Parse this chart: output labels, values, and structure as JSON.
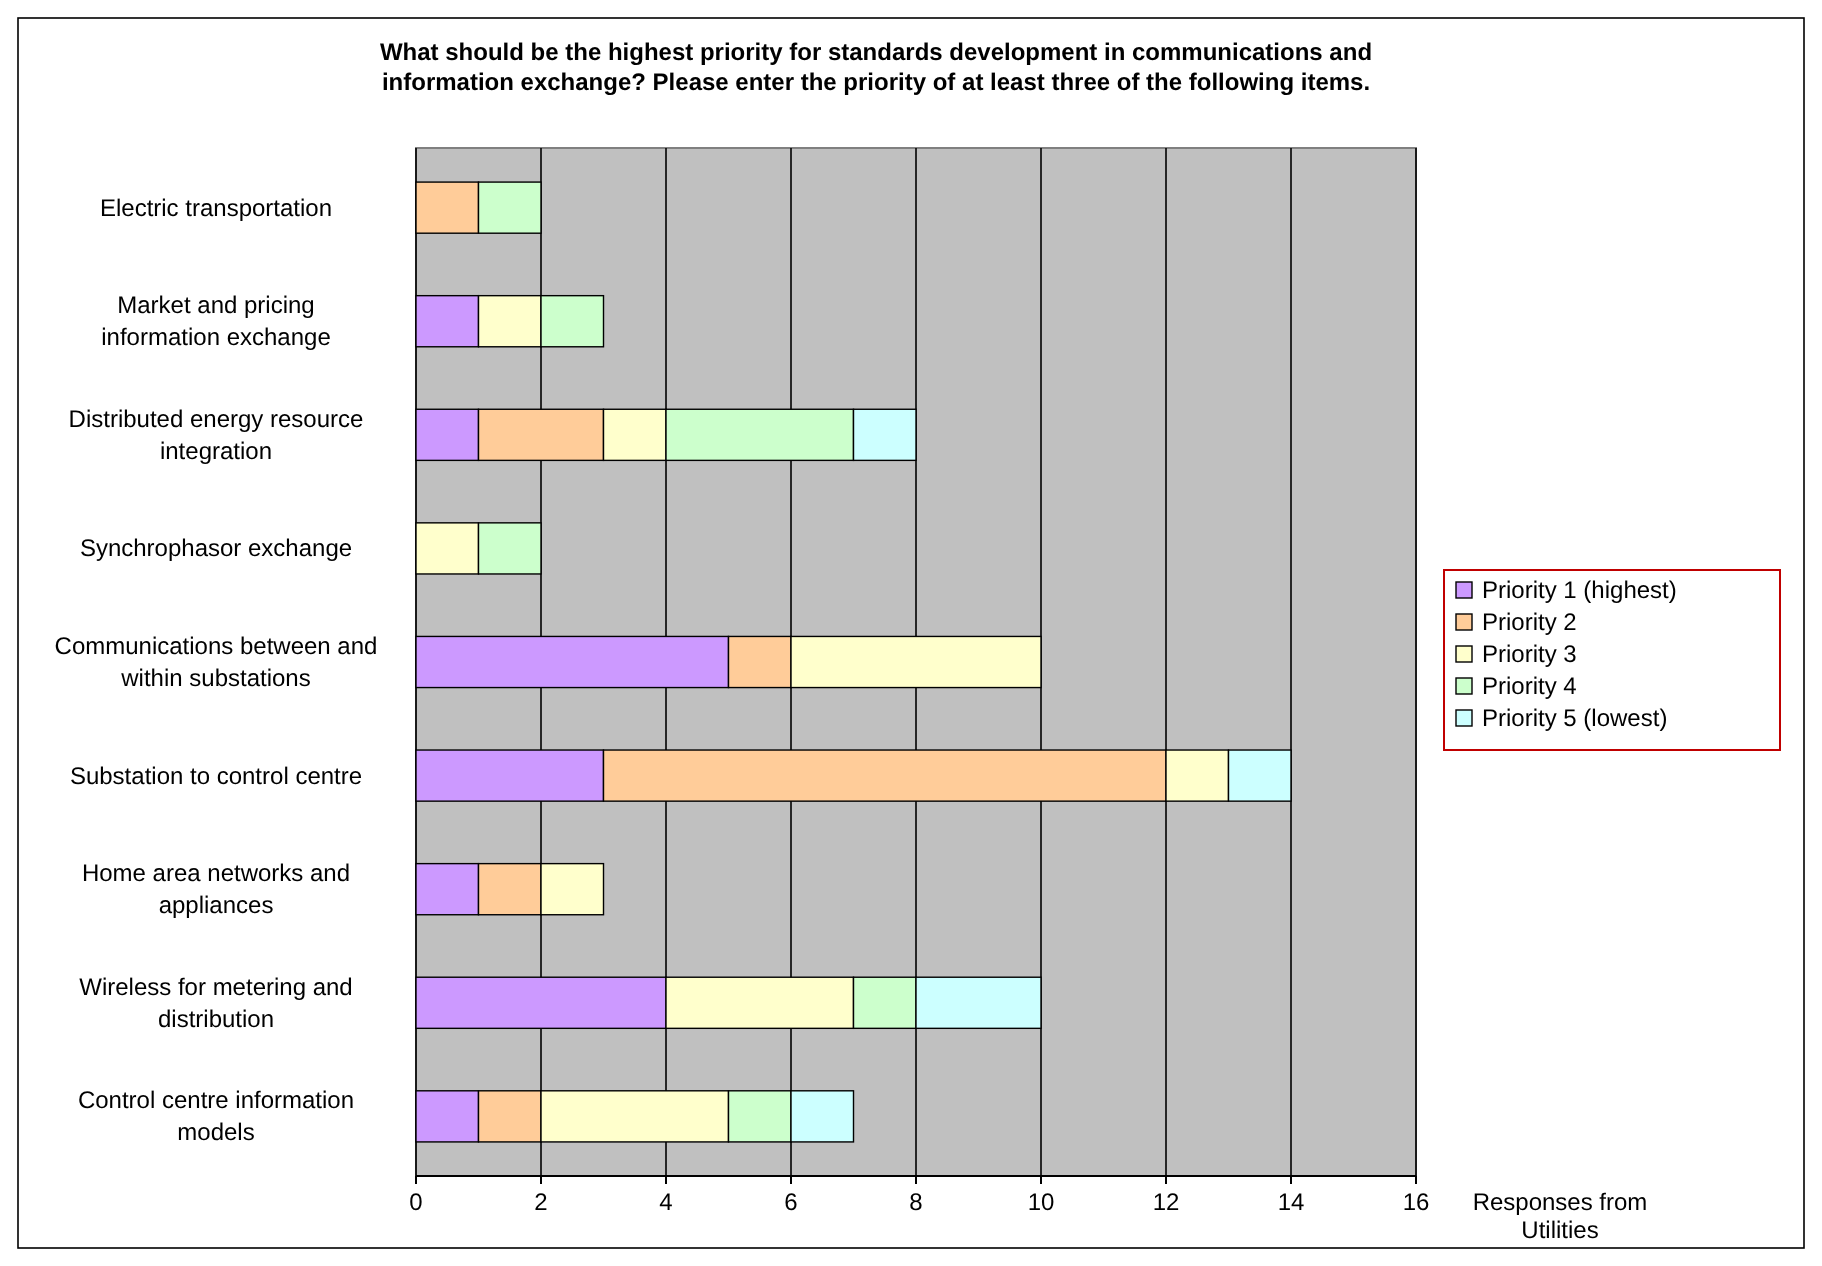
{
  "chart_data": {
    "type": "bar",
    "orientation": "horizontal",
    "stacked": true,
    "title": "What should be the highest priority for standards development in communications and information exchange? Please enter the priority of at least three of the following items.",
    "xlabel": "Responses from Utilities",
    "categories": [
      "Electric transportation",
      "Market and pricing information exchange",
      "Distributed energy resource integration",
      "Synchrophasor exchange",
      "Communications between and within substations",
      "Substation to control centre",
      "Home area networks and appliances",
      "Wireless for metering and distribution",
      "Control centre information models"
    ],
    "series": [
      {
        "name": "Priority 1 (highest)",
        "color": "#cc99ff",
        "values": [
          0,
          1,
          1,
          0,
          5,
          3,
          1,
          4,
          1
        ]
      },
      {
        "name": "Priority 2",
        "color": "#ffcc99",
        "values": [
          1,
          0,
          2,
          0,
          1,
          9,
          1,
          0,
          1
        ]
      },
      {
        "name": "Priority 3",
        "color": "#ffffcc",
        "values": [
          0,
          1,
          1,
          1,
          4,
          1,
          1,
          3,
          3
        ]
      },
      {
        "name": "Priority 4",
        "color": "#ccffcc",
        "values": [
          1,
          1,
          3,
          1,
          0,
          0,
          0,
          1,
          1
        ]
      },
      {
        "name": "Priority 5 (lowest)",
        "color": "#ccffff",
        "values": [
          0,
          0,
          1,
          0,
          0,
          1,
          0,
          2,
          1
        ]
      }
    ],
    "xlim": [
      0,
      16
    ],
    "xticks": [
      0,
      2,
      4,
      6,
      8,
      10,
      12,
      14,
      16
    ],
    "grid": "x",
    "legend": "right"
  }
}
